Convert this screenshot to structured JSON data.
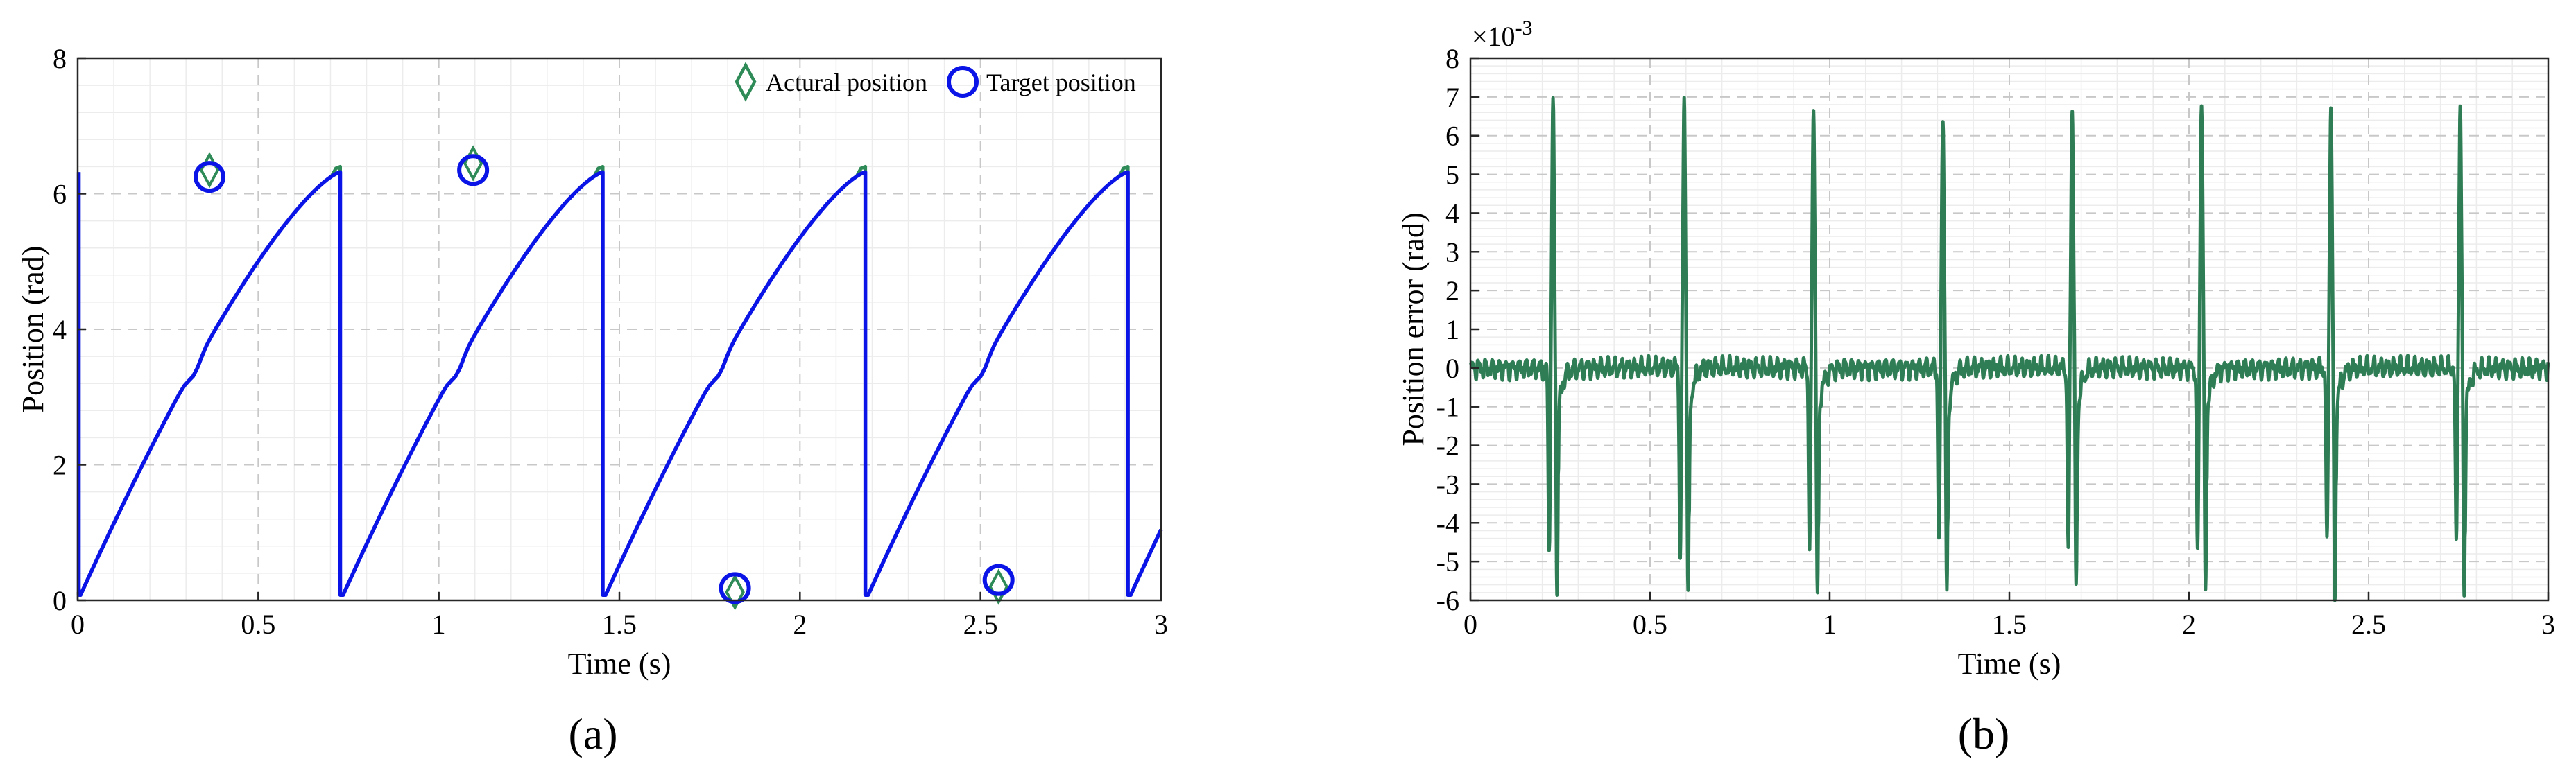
{
  "chart_data": [
    {
      "type": "line",
      "panel_label": "(a)",
      "xlabel": "Time (s)",
      "ylabel": "Position (rad)",
      "xlim": [
        0,
        3
      ],
      "ylim": [
        0,
        8
      ],
      "xticks": [
        0,
        0.5,
        1,
        1.5,
        2,
        2.5,
        3
      ],
      "xtick_labels": [
        "0",
        "0.5",
        "1",
        "1.5",
        "2",
        "2.5",
        "3"
      ],
      "yticks": [
        0,
        2,
        4,
        6,
        8
      ],
      "ytick_labels": [
        "0",
        "2",
        "4",
        "6",
        "8"
      ],
      "grid": true,
      "legend_position": "top-right",
      "sawtooth_period": 0.727,
      "position_range": [
        0.08,
        6.32
      ],
      "series": [
        {
          "name": "Actural position",
          "color": "#2e8b57",
          "marker": "diamond",
          "marked_points": [
            [
              0.365,
              6.35
            ],
            [
              1.095,
              6.45
            ],
            [
              1.82,
              0.12
            ],
            [
              2.55,
              0.2
            ]
          ]
        },
        {
          "name": "Target position",
          "color": "#0a14e6",
          "marker": "circle",
          "marked_points": [
            [
              0.365,
              6.25
            ],
            [
              1.095,
              6.35
            ],
            [
              1.82,
              0.18
            ],
            [
              2.55,
              0.3
            ]
          ]
        }
      ]
    },
    {
      "type": "line",
      "panel_label": "(b)",
      "xlabel": "Time (s)",
      "ylabel": "Position error (rad)",
      "exponent_label": "×10",
      "exponent_power": "-3",
      "xlim": [
        0,
        3
      ],
      "ylim": [
        -6,
        8
      ],
      "xticks": [
        0,
        0.5,
        1,
        1.5,
        2,
        2.5,
        3
      ],
      "xtick_labels": [
        "0",
        "0.5",
        "1",
        "1.5",
        "2",
        "2.5",
        "3"
      ],
      "yticks": [
        -6,
        -5,
        -4,
        -3,
        -2,
        -1,
        0,
        1,
        2,
        3,
        4,
        5,
        6,
        7,
        8
      ],
      "ytick_labels": [
        "-6",
        "-5",
        "-4",
        "-3",
        "-2",
        "-1",
        "0",
        "1",
        "2",
        "3",
        "4",
        "5",
        "6",
        "7",
        "8"
      ],
      "grid": true,
      "series": [
        {
          "color": "#2e7d55",
          "spikes": [
            {
              "t": 0.23,
              "pre": -4.7,
              "peak": 6.8,
              "post": -5.6
            },
            {
              "t": 0.595,
              "pre": -4.8,
              "peak": 7.0,
              "post": -5.8
            },
            {
              "t": 0.955,
              "pre": -4.6,
              "peak": 6.85,
              "post": -6.0
            },
            {
              "t": 1.315,
              "pre": -4.5,
              "peak": 6.65,
              "post": -5.8
            },
            {
              "t": 1.675,
              "pre": -4.7,
              "peak": 6.8,
              "post": -5.6
            },
            {
              "t": 2.035,
              "pre": -4.8,
              "peak": 7.0,
              "post": -5.8
            },
            {
              "t": 2.395,
              "pre": -4.6,
              "peak": 6.8,
              "post": -6.0
            },
            {
              "t": 2.755,
              "pre": -4.5,
              "peak": 6.65,
              "post": -5.8
            }
          ],
          "noise_amplitude": 0.3
        }
      ]
    }
  ]
}
